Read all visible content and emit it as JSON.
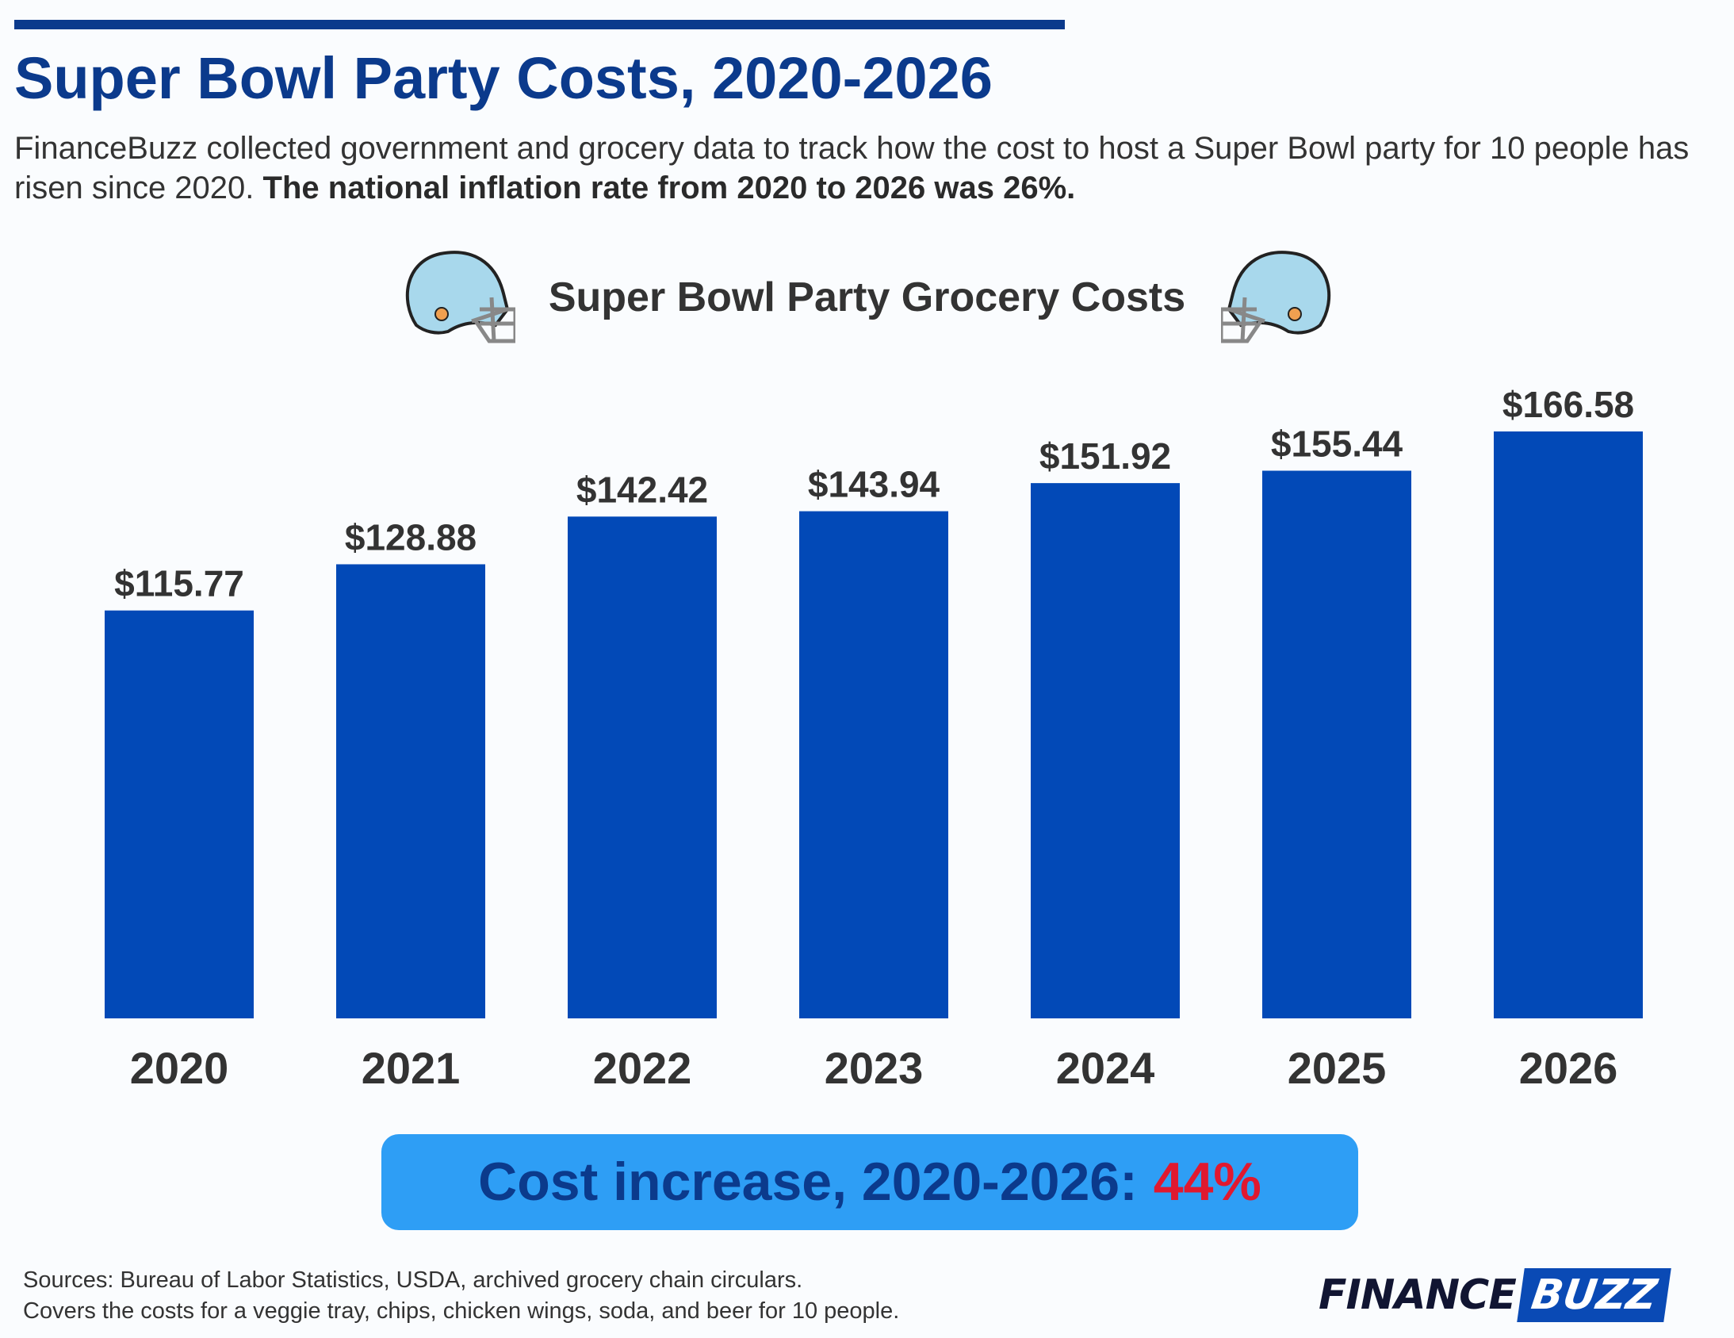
{
  "header": {
    "title": "Super Bowl Party Costs, 2020-2026",
    "subtitle": "FinanceBuzz collected government and grocery data to track how the cost to host a Super Bowl party for 10 people has risen since 2020.",
    "subtitle_bold": "The national inflation rate from 2020 to 2026 was 26%."
  },
  "chart_data": {
    "type": "bar",
    "title": "Super Bowl Party Grocery Costs",
    "categories": [
      "2020",
      "2021",
      "2022",
      "2023",
      "2024",
      "2025",
      "2026"
    ],
    "values": [
      115.77,
      128.88,
      142.42,
      143.94,
      151.92,
      155.44,
      166.58
    ],
    "labels": [
      "$115.77",
      "$128.88",
      "$142.42",
      "$143.94",
      "$151.92",
      "$155.44",
      "$166.58"
    ],
    "xlabel": "",
    "ylabel": "",
    "ylim": [
      0,
      166.58
    ],
    "grid": false,
    "bar_color": "#0249b7"
  },
  "banner": {
    "label": "Cost increase, 2020-2026:",
    "value": "44%"
  },
  "footer": {
    "sources": "Sources: Bureau of Labor Statistics, USDA, archived grocery chain circulars.",
    "note": "Covers the costs for a veggie tray, chips, chicken wings, soda, and beer for 10 people."
  },
  "logo": {
    "part1": "FINANCE",
    "part2": "BUZZ"
  },
  "icons": [
    "football-helmet-icon"
  ]
}
